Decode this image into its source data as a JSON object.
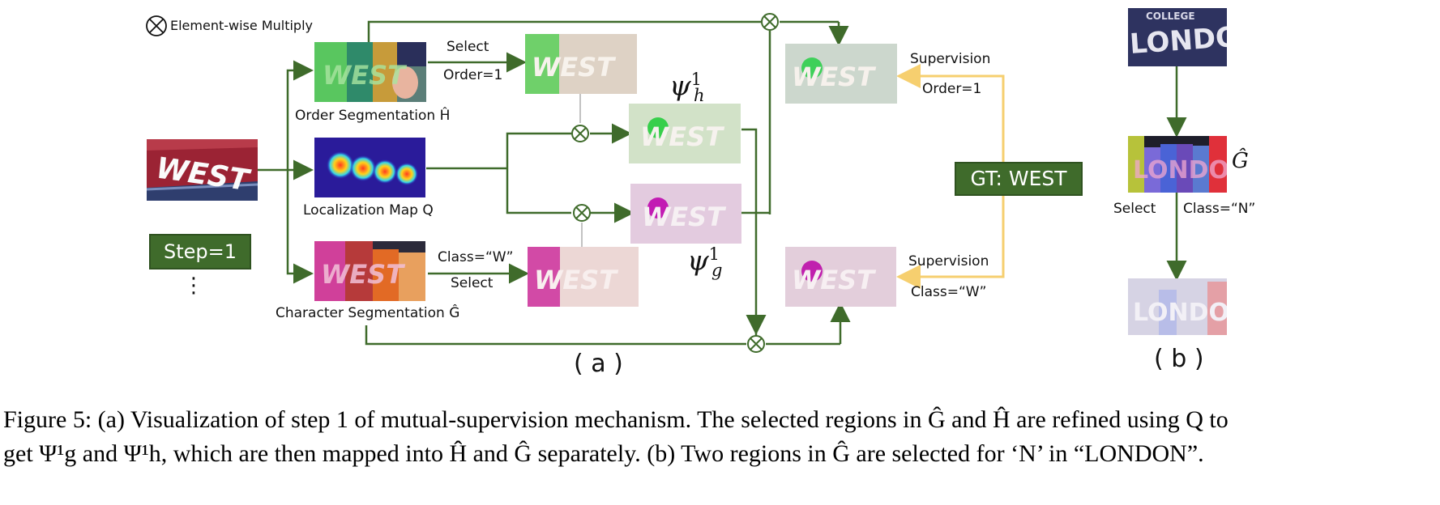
{
  "legend": {
    "symbol": "⊗",
    "text": "Element-wise Multiply"
  },
  "panel_a": {
    "input_image_text": "WEST",
    "step_label": "Step=1",
    "ellipsis": "⋮",
    "order_seg_label": "Order  Segmentation  Ĥ",
    "loc_map_label": "Localization  Map  Q",
    "char_seg_label": "Character  Segmentation  Ĝ",
    "select_top": "Select",
    "order_eq_top": "Order=1",
    "class_eq_bottom": "Class=“W”",
    "select_bottom": "Select",
    "psi_h": "ψ",
    "psi_h_sup": "1",
    "psi_h_sub": "h",
    "psi_g": "ψ",
    "psi_g_sup": "1",
    "psi_g_sub": "g",
    "supervision_top": "Supervision",
    "supervision_top_sub": "Order=1",
    "supervision_bottom": "Supervision",
    "supervision_bottom_sub": "Class=“W”",
    "gt_label": "GT: WEST",
    "panel_label": "( a )"
  },
  "panel_b": {
    "image_text": "LONDON",
    "top_word": "COLLEGE",
    "g_hat": "Ĝ",
    "select": "Select",
    "class_eq": "Class=“N”",
    "panel_label": "( b )"
  },
  "caption": {
    "line1": "Figure 5: (a) Visualization of step 1 of mutual-supervision mechanism. The selected regions in Ĝ and Ĥ are refined using Q to",
    "line2": "get Ψ¹g and Ψ¹h, which are then mapped into Ĥ and Ĝ separately. (b) Two regions in Ĝ are selected for ‘N’ in “LONDON”."
  },
  "colors": {
    "arrow_green": "#3f6b2b",
    "gt_yellow": "#f6cf6f",
    "label_box": "#3f6b2b"
  }
}
